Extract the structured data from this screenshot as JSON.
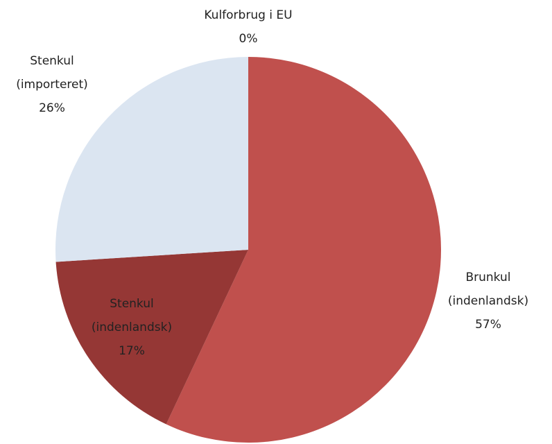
{
  "chart_data": {
    "type": "pie",
    "categories": [
      [
        "Kulforbrug i EU"
      ],
      [
        "Brunkul",
        "(indenlandsk)"
      ],
      [
        "Stenkul",
        "(indenlandsk)"
      ],
      [
        "Stenkul",
        "(importeret)"
      ]
    ],
    "values": [
      0,
      57,
      17,
      26
    ],
    "value_labels": [
      "0%",
      "57%",
      "17%",
      "26%"
    ],
    "colors": [
      "#4f81bd",
      "#c0504d",
      "#953735",
      "#dbe5f1"
    ]
  }
}
